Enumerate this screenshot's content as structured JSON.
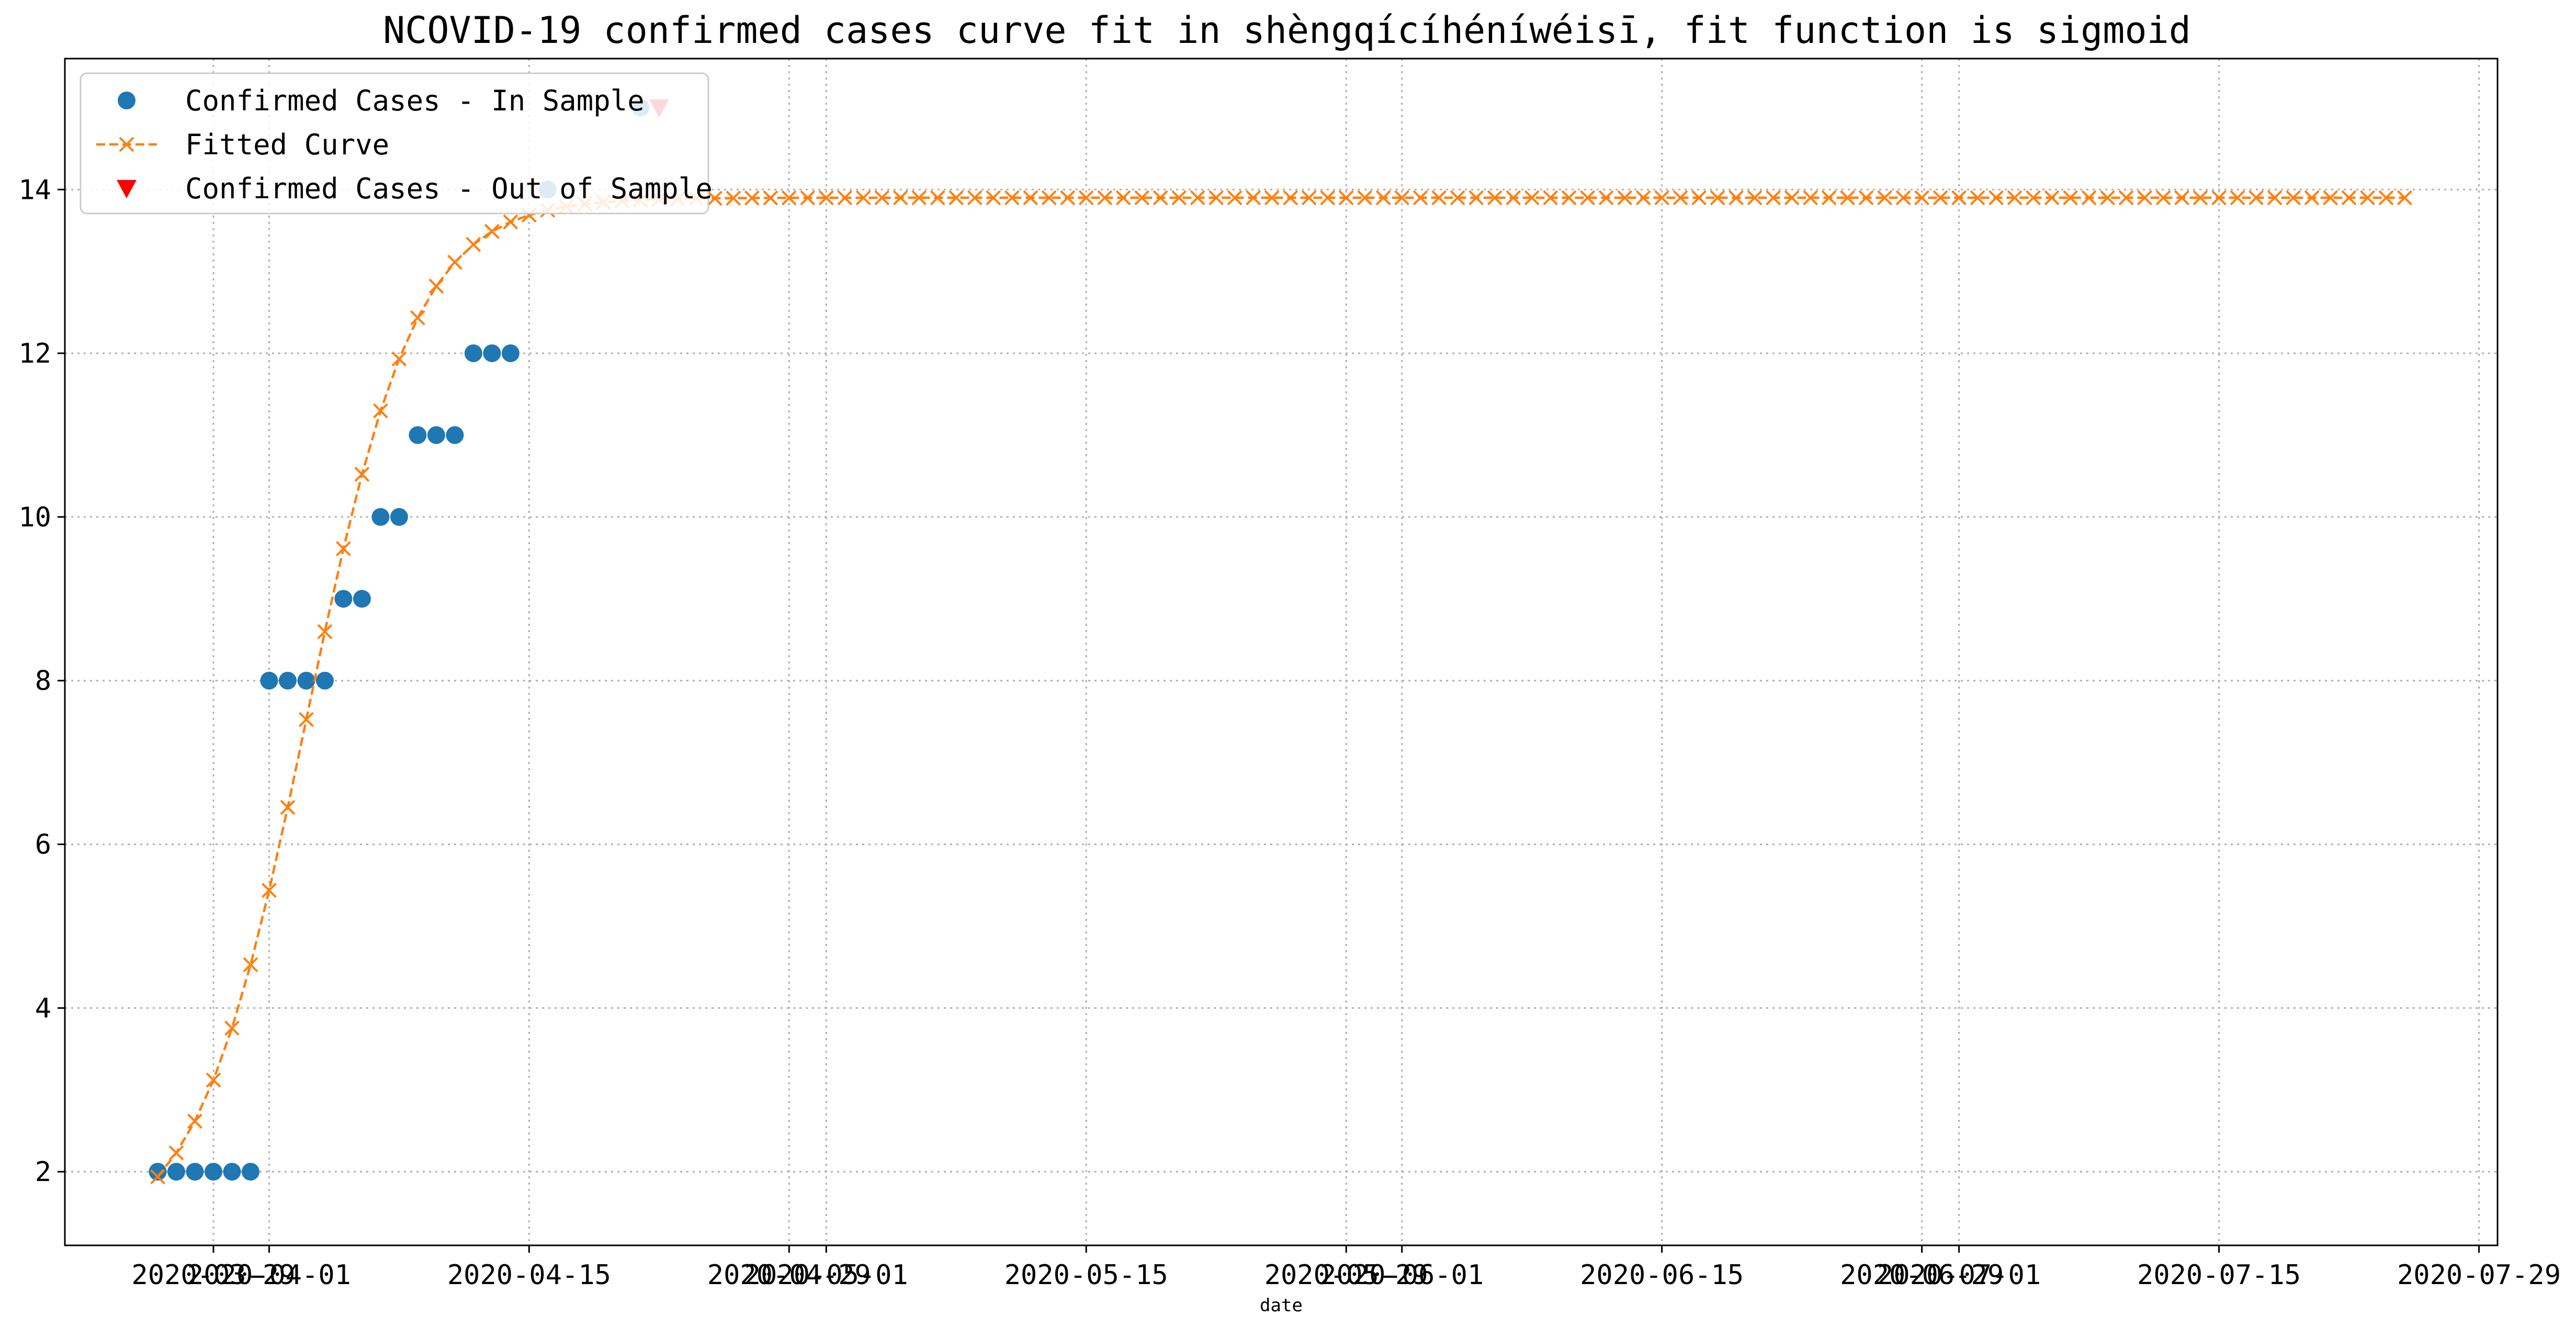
{
  "chart_data": {
    "type": "line",
    "title": "NCOVID-19 confirmed cases curve fit in shèngqícíhéníwéisī, fit function is sigmoid",
    "xlabel": "date",
    "ylabel": "",
    "x_type": "date",
    "xlim": [
      "2020-03-21",
      "2020-07-30"
    ],
    "ylim": [
      1.1,
      15.6
    ],
    "grid": true,
    "legend_position": "top-left",
    "x_ticks": [
      "2020-03-29",
      "2020-04-01",
      "2020-04-15",
      "2020-04-29",
      "2020-05-01",
      "2020-05-15",
      "2020-05-29",
      "2020-06-01",
      "2020-06-15",
      "2020-06-29",
      "2020-07-01",
      "2020-07-15",
      "2020-07-29"
    ],
    "y_ticks": [
      2,
      4,
      6,
      8,
      10,
      12,
      14
    ],
    "series": [
      {
        "name": "Confirmed Cases - In Sample",
        "style": "markers",
        "marker": "circle",
        "color": "#1f77b4",
        "points": [
          [
            "2020-03-26",
            2
          ],
          [
            "2020-03-27",
            2
          ],
          [
            "2020-03-28",
            2
          ],
          [
            "2020-03-29",
            2
          ],
          [
            "2020-03-30",
            2
          ],
          [
            "2020-03-31",
            2
          ],
          [
            "2020-04-01",
            8
          ],
          [
            "2020-04-02",
            8
          ],
          [
            "2020-04-03",
            8
          ],
          [
            "2020-04-04",
            8
          ],
          [
            "2020-04-05",
            9
          ],
          [
            "2020-04-06",
            9
          ],
          [
            "2020-04-07",
            10
          ],
          [
            "2020-04-08",
            10
          ],
          [
            "2020-04-09",
            11
          ],
          [
            "2020-04-10",
            11
          ],
          [
            "2020-04-11",
            11
          ],
          [
            "2020-04-12",
            12
          ],
          [
            "2020-04-13",
            12
          ],
          [
            "2020-04-14",
            12
          ],
          [
            "2020-04-16",
            14
          ],
          [
            "2020-04-21",
            15
          ]
        ]
      },
      {
        "name": "Fitted Curve",
        "style": "dashed-line-x-markers",
        "marker": "x",
        "color": "#ff7f0e",
        "start_date": "2020-03-26",
        "end_date": "2020-07-25",
        "sigmoid": {
          "lower": 1.15,
          "upper": 13.9,
          "midpoint_date": "2020-04-03",
          "rate": 0.34
        }
      },
      {
        "name": "Confirmed Cases - Out of Sample",
        "style": "markers",
        "marker": "triangle-down",
        "color": "#ff0000",
        "points": [
          [
            "2020-04-22",
            15
          ]
        ]
      }
    ]
  }
}
